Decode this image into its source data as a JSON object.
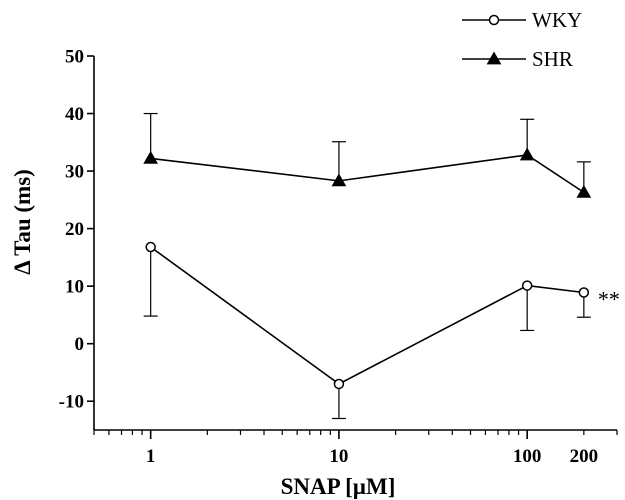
{
  "chart_data": {
    "type": "line",
    "xscale": "log",
    "xlabel": "SNAP [µM]",
    "ylabel": "Δ Tau (ms)",
    "xlim": [
      0.5,
      300
    ],
    "ylim": [
      -15,
      50
    ],
    "xticks": [
      1,
      10,
      100,
      200
    ],
    "xtick_labels": [
      "1",
      "10",
      "100",
      "200"
    ],
    "yticks": [
      -10,
      0,
      10,
      20,
      30,
      40,
      50
    ],
    "ytick_labels": [
      "-10",
      "0",
      "10",
      "20",
      "30",
      "40",
      "50"
    ],
    "grid": false,
    "legend_position": "top-right",
    "series": [
      {
        "name": "WKY",
        "marker": "open-circle",
        "x": [
          1,
          10,
          100,
          200
        ],
        "y": [
          16.8,
          -7.0,
          10.1,
          8.9
        ],
        "error": [
          12.0,
          6.0,
          7.8,
          4.3
        ],
        "error_direction": "down"
      },
      {
        "name": "SHR",
        "marker": "filled-triangle",
        "x": [
          1,
          10,
          100,
          200
        ],
        "y": [
          32.2,
          28.3,
          32.8,
          26.3
        ],
        "error": [
          7.8,
          6.8,
          6.2,
          5.3
        ],
        "error_direction": "up"
      }
    ],
    "annotations": [
      {
        "text": "**",
        "series": "WKY",
        "x": 200
      }
    ]
  }
}
